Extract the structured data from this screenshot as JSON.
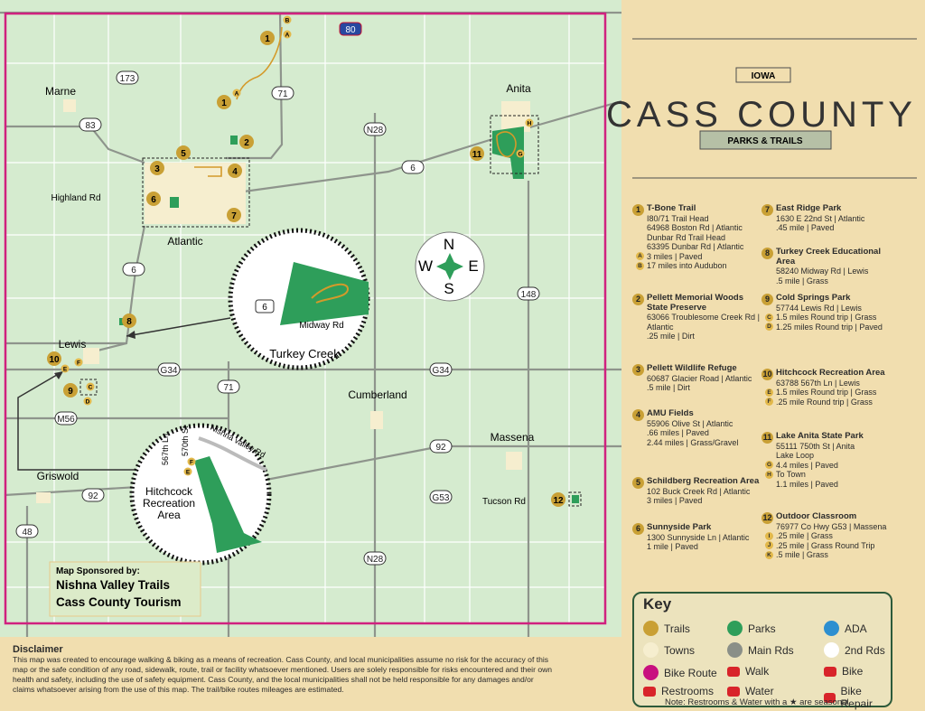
{
  "header": {
    "state": "IOWA",
    "title": "CASS COUNTY",
    "subtitle": "PARKS & TRAILS"
  },
  "map": {
    "towns": [
      "Marne",
      "Anita",
      "Atlantic",
      "Lewis",
      "Cumberland",
      "Massena",
      "Griswold"
    ],
    "roads": [
      "173",
      "83",
      "71",
      "N28",
      "6",
      "6",
      "148",
      "G34",
      "G34",
      "71",
      "M56",
      "92",
      "92",
      "48",
      "G53",
      "N28",
      "80"
    ],
    "road_names": [
      "Highland Rd",
      "Tucson Rd"
    ],
    "markers": [
      "1",
      "1",
      "2",
      "5",
      "3",
      "4",
      "6",
      "7",
      "11",
      "8",
      "10",
      "9",
      "12"
    ],
    "trail_letters": [
      "B",
      "A",
      "A",
      "H",
      "G",
      "F",
      "E",
      "C",
      "D"
    ],
    "inset_turkey": {
      "road": "6",
      "street": "Midway Rd",
      "label": "Turkey Creek"
    },
    "inset_hitchcock": {
      "streets": [
        "567th Ln",
        "570th St",
        "Nishna valley Rd"
      ],
      "letters": [
        "F",
        "E"
      ],
      "label": [
        "Hitchcock",
        "Recreation",
        "Area"
      ]
    },
    "compass": {
      "n": "N",
      "w": "W",
      "e": "E",
      "s": "S"
    },
    "sponsor": {
      "heading": "Map Sponsored by:",
      "lines": [
        "Nishna Valley Trails",
        "Cass County Tourism"
      ]
    }
  },
  "sites": [
    {
      "number": "1",
      "name": "T-Bone Trail",
      "lines": [
        "I80/71 Trail Head",
        "64968 Boston Rd | Atlantic",
        "Dunbar Rd Trail Head",
        "63395 Dunbar Rd | Atlantic",
        {
          "letter": "A",
          "text": "3 miles | Paved"
        },
        {
          "letter": "B",
          "text": "17 miles into Audubon"
        }
      ]
    },
    {
      "number": "2",
      "name": "Pellett Memorial Woods State Preserve",
      "lines": [
        "63066 Troublesome Creek Rd | Atlantic",
        ".25 mile | Dirt"
      ]
    },
    {
      "number": "3",
      "name": "Pellett Wildlife Refuge",
      "lines": [
        "60687 Glacier Road | Atlantic",
        ".5 mile | Dirt"
      ]
    },
    {
      "number": "4",
      "name": "AMU Fields",
      "lines": [
        "55906 Olive St | Atlantic",
        ".66 miles | Paved",
        "2.44 miles | Grass/Gravel"
      ]
    },
    {
      "number": "5",
      "name": "Schildberg Recreation Area",
      "lines": [
        "102 Buck Creek Rd | Atlantic",
        "3 miles | Paved"
      ]
    },
    {
      "number": "6",
      "name": "Sunnyside Park",
      "lines": [
        "1300 Sunnyside Ln | Atlantic",
        "1 mile | Paved"
      ]
    },
    {
      "number": "7",
      "name": "East Ridge Park",
      "lines": [
        "1630 E 22nd St | Atlantic",
        ".45 mile | Paved"
      ]
    },
    {
      "number": "8",
      "name": "Turkey Creek Educational Area",
      "lines": [
        "58240 Midway Rd | Lewis",
        ".5 mile | Grass"
      ]
    },
    {
      "number": "9",
      "name": "Cold Springs Park",
      "lines": [
        "57744 Lewis Rd | Lewis",
        {
          "letter": "C",
          "text": "1.5 miles Round trip | Grass"
        },
        {
          "letter": "D",
          "text": "1.25 miles Round trip | Paved"
        }
      ]
    },
    {
      "number": "10",
      "name": "Hitchcock Recreation Area",
      "lines": [
        "63788 567th Ln | Lewis",
        {
          "letter": "E",
          "text": "1.5 miles Round trip | Grass"
        },
        {
          "letter": "F",
          "text": ".25 mile Round trip | Grass"
        }
      ]
    },
    {
      "number": "11",
      "name": "Lake Anita State Park",
      "lines": [
        "55111 750th St | Anita",
        "Lake Loop",
        {
          "letter": "G",
          "text": "4.4 miles | Paved"
        },
        {
          "letter": "H",
          "text": "To Town"
        },
        "1.1 miles | Paved"
      ]
    },
    {
      "number": "12",
      "name": "Outdoor Classroom",
      "lines": [
        "76977 Co Hwy G53 | Massena",
        {
          "letter": "I",
          "text": ".25 mile | Grass"
        },
        {
          "letter": "J",
          "text": ".25 mile | Grass Round Trip"
        },
        {
          "letter": "K",
          "text": ".5 mile | Grass"
        }
      ]
    }
  ],
  "key": {
    "title": "Key",
    "items": [
      "Trails",
      "Parks",
      "ADA",
      "Towns",
      "Main Rds",
      "2nd Rds",
      "Bike Route",
      "Walk",
      "Bike",
      "Restrooms",
      "Water",
      "Bike Repair"
    ],
    "note": "Note: Restrooms & Water with a ★ are seasonal"
  },
  "disclaimer": {
    "title": "Disclaimer",
    "lines": [
      "This map was created to encourage walking & biking as a means of recreation. Cass County, and local municipalities assume no risk for the accuracy of this",
      "map or the safe condition of any road, sidewalk, route, trail or facility whatsoever mentioned. Users are solely responsible for risks encountered and their own",
      "health and safety, including the use of safety equipment. Cass County, and the local municipalities shall not be held responsible for any damages and/or",
      "claims whatsoever arising from the use of this map. The trail/bike routes mileages are estimated."
    ]
  }
}
